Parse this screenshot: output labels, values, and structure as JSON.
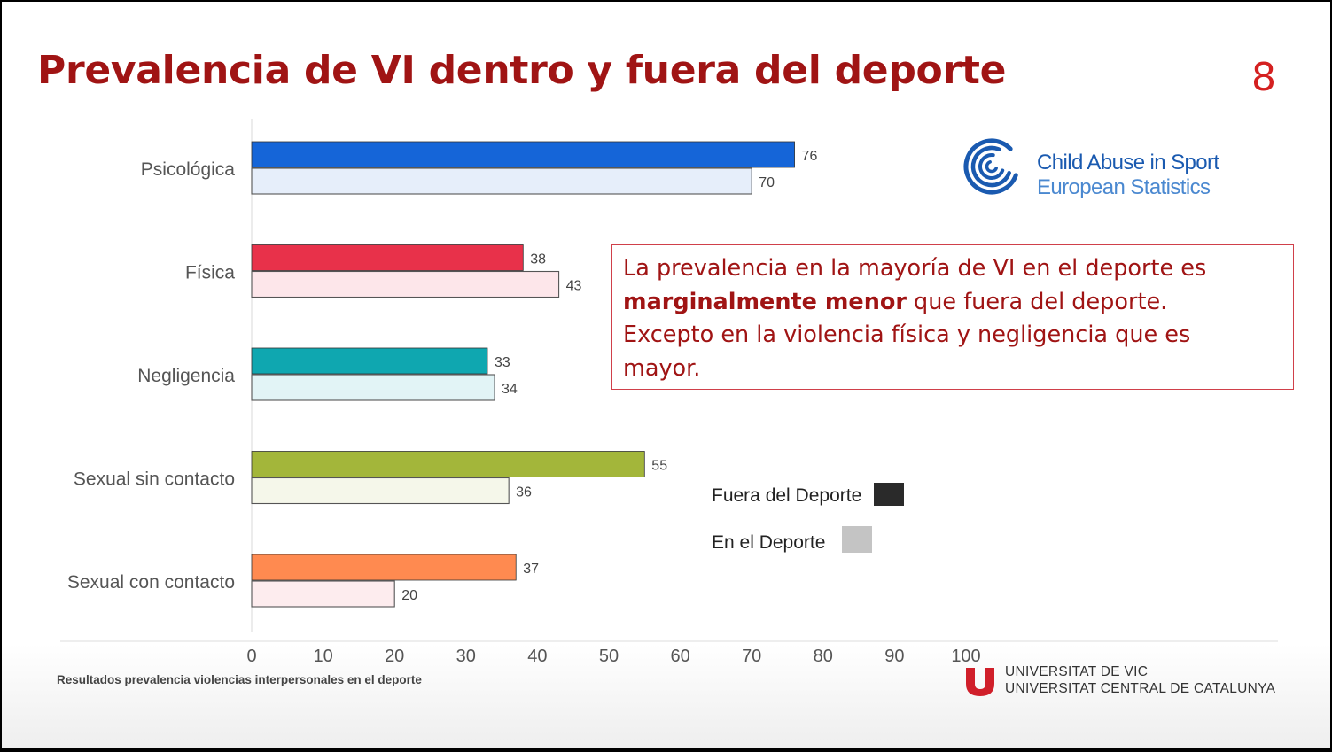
{
  "slide": {
    "title": "Prevalencia de VI dentro y fuera del deporte",
    "page_number": "8",
    "callout": {
      "line1": "La prevalencia en la mayoría de VI en el deporte es",
      "bold": "marginalmente menor",
      "rest1": " que fuera del deporte.",
      "line3": "Excepto en la violencia física y negligencia que es",
      "line4": "mayor."
    },
    "logo": {
      "line1": "Child Abuse in Sport",
      "line2": "European Statistics",
      "icon": "concentric-c-logo-icon"
    },
    "legend": {
      "outside": "Fuera del Deporte",
      "inside": "En el Deporte",
      "outside_color": "#2a2a2a",
      "inside_color": "#c4c4c4"
    },
    "footnote": "Resultados prevalencia violencias interpersonales en el deporte",
    "university": {
      "line1": "UNIVERSITAT DE VIC",
      "line2": "UNIVERSITAT CENTRAL DE CATALUNYA",
      "color": "#d01f2a"
    }
  },
  "chart_data": {
    "type": "bar",
    "orientation": "horizontal",
    "categories": [
      "Psicológica",
      "Física",
      "Negligencia",
      "Sexual sin contacto",
      "Sexual con contacto"
    ],
    "series": [
      {
        "name": "Fuera del Deporte",
        "values": [
          76,
          38,
          33,
          55,
          37
        ]
      },
      {
        "name": "En el Deporte",
        "values": [
          70,
          43,
          34,
          36,
          20
        ]
      }
    ],
    "colors_outside": [
      "#1565d8",
      "#e8314a",
      "#0fa7b0",
      "#a3b63a",
      "#ff8a50"
    ],
    "colors_inside": [
      "#e6eefa",
      "#fde6ea",
      "#e2f4f6",
      "#f5f7ea",
      "#fdecee"
    ],
    "xticks": [
      0,
      10,
      20,
      30,
      40,
      50,
      60,
      70,
      80,
      90,
      100
    ],
    "xlim": [
      0,
      100
    ],
    "legend_position": "right",
    "grid": false
  }
}
